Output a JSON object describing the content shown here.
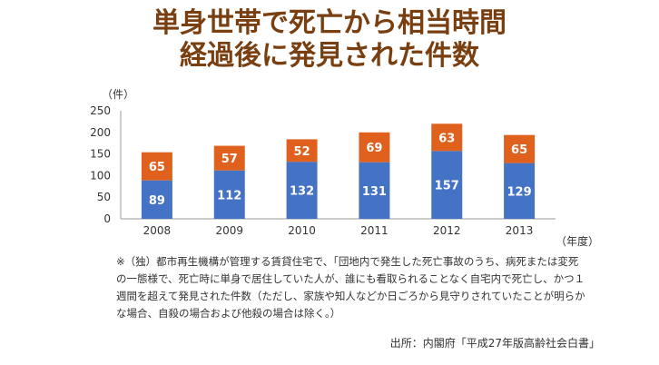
{
  "title_line1": "単身世帯で死亡から相当時間",
  "title_line2": "経過後に発見された件数",
  "chart_data": {
    "type": "bar",
    "stacked": true,
    "categories": [
      "2008",
      "2009",
      "2010",
      "2011",
      "2012",
      "2013"
    ],
    "series": [
      {
        "values": [
          89,
          112,
          132,
          131,
          157,
          129
        ],
        "color": "#4472c4"
      },
      {
        "values": [
          65,
          57,
          52,
          69,
          63,
          65
        ],
        "color": "#e0611d"
      }
    ],
    "ylabel": "（件）",
    "xlabel": "（年度）",
    "ylim": [
      0,
      250
    ],
    "yticks": [
      0,
      50,
      100,
      150,
      200,
      250
    ],
    "grid": false
  },
  "note": "※（独）都市再生機構が管理する賃貸住宅で、「団地内で発生した死亡事故のうち、病死または変死の一態様で、死亡時に単身で居住していた人が、誰にも看取られることなく自宅内で死亡し、かつ１週間を超えて発見された件数（ただし、家族や知人などか日ごろから見守りされていたことが明らかな場合、自殺の場合および他殺の場合は除く。）",
  "source": "出所：内閣府「平成27年版高齢社会白書」"
}
